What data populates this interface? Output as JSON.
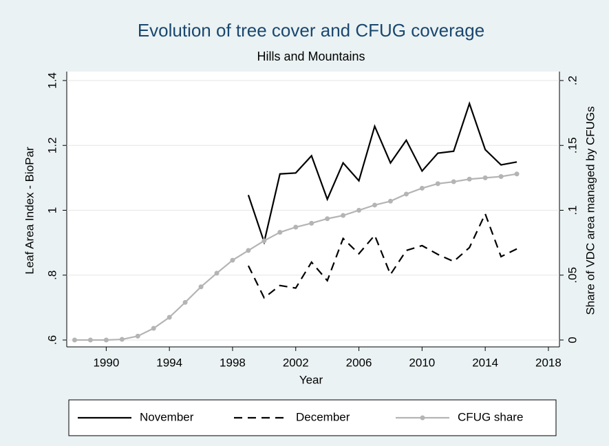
{
  "chart_data": {
    "type": "line",
    "title": "Evolution of tree cover and CFUG coverage",
    "subtitle": "Hills and Mountains",
    "x_label": "Year",
    "y_label": "Leaf Area Index - BioPar",
    "y2_label": "Share of VDC area managed by CFUGs",
    "x": [
      1988,
      1989,
      1990,
      1991,
      1992,
      1993,
      1994,
      1995,
      1996,
      1997,
      1998,
      1999,
      2000,
      2001,
      2002,
      2003,
      2004,
      2005,
      2006,
      2007,
      2008,
      2009,
      2010,
      2011,
      2012,
      2013,
      2014,
      2015,
      2016
    ],
    "xlim": [
      1987.5,
      2018.7
    ],
    "xticks": [
      1990,
      1994,
      1998,
      2002,
      2006,
      2010,
      2014,
      2018
    ],
    "ylim": [
      0.6,
      1.4
    ],
    "yticks": [
      {
        "value": 0.6,
        "label": ".6"
      },
      {
        "value": 0.8,
        "label": ".8"
      },
      1,
      1.2,
      1.4
    ],
    "y2lim": [
      0,
      0.2
    ],
    "y2ticks": [
      0,
      {
        "value": 0.05,
        "label": ".05"
      },
      {
        "value": 0.1,
        "label": ".1"
      },
      {
        "value": 0.15,
        "label": ".15"
      },
      {
        "value": 0.2,
        "label": ".2"
      }
    ],
    "grid": true,
    "legend": "bottom",
    "series": [
      {
        "name": "November",
        "color": "#000000",
        "dash": false,
        "marker": false,
        "values": [
          null,
          null,
          null,
          null,
          null,
          null,
          null,
          null,
          null,
          null,
          null,
          1.047,
          0.902,
          1.112,
          1.115,
          1.168,
          1.034,
          1.146,
          1.091,
          1.259,
          1.146,
          1.216,
          1.121,
          1.176,
          1.182,
          1.329,
          1.187,
          1.14,
          1.149
        ]
      },
      {
        "name": "December",
        "color": "#000000",
        "dash": true,
        "marker": false,
        "values": [
          null,
          null,
          null,
          null,
          null,
          null,
          null,
          null,
          null,
          null,
          null,
          0.829,
          0.73,
          0.768,
          0.76,
          0.84,
          0.783,
          0.913,
          0.866,
          0.923,
          0.802,
          0.876,
          0.891,
          0.864,
          0.842,
          0.885,
          0.989,
          0.857,
          0.881
        ]
      },
      {
        "name": "CFUG share",
        "color": "#b4b4b4",
        "dash": false,
        "marker": true,
        "axis": "y2",
        "values": [
          0,
          0,
          0,
          0.0005,
          0.003,
          0.009,
          0.0175,
          0.029,
          0.041,
          0.0515,
          0.0615,
          0.069,
          0.0765,
          0.083,
          0.087,
          0.09,
          0.0935,
          0.096,
          0.1,
          0.104,
          0.107,
          0.1125,
          0.117,
          0.1205,
          0.122,
          0.124,
          0.125,
          0.126,
          0.128
        ]
      }
    ]
  }
}
